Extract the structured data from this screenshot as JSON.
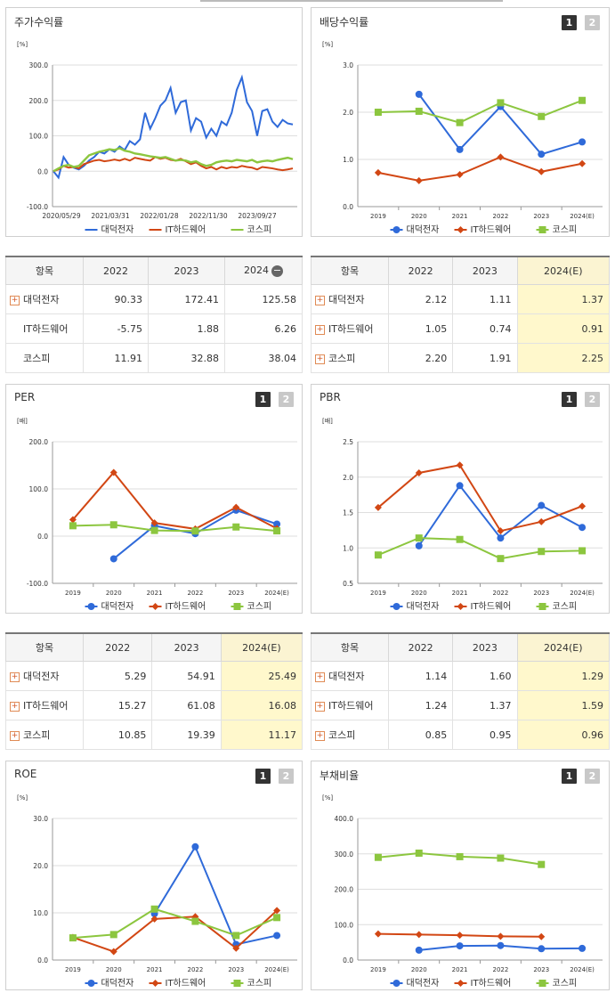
{
  "colors": {
    "series1": "#2f6ad9",
    "series2": "#d24714",
    "series3": "#8cc63f"
  },
  "panels": {
    "stock": {
      "title": "주가수익률"
    },
    "dividend": {
      "title": "배당수익률",
      "pages": [
        "1",
        "2"
      ]
    },
    "per": {
      "title": "PER",
      "pages": [
        "1",
        "2"
      ]
    },
    "pbr": {
      "title": "PBR",
      "pages": [
        "1",
        "2"
      ]
    },
    "roe": {
      "title": "ROE",
      "pages": [
        "1",
        "2"
      ]
    },
    "debt": {
      "title": "부채비율",
      "pages": [
        "1",
        "2"
      ]
    }
  },
  "chart_data": [
    {
      "id": "stock",
      "type": "line",
      "unit": "[%]",
      "y_ticks": [
        "300.0",
        "200.0",
        "100.0",
        "0.0",
        "-100.0"
      ],
      "ylim": [
        -100,
        300
      ],
      "x_ticks": [
        "2020/05/29",
        "2021/03/31",
        "2022/01/28",
        "2022/11/30",
        "2023/09/27"
      ],
      "series": [
        {
          "name": "대덕전자",
          "values": [
            0,
            -18,
            40,
            18,
            10,
            5,
            15,
            30,
            40,
            55,
            50,
            62,
            55,
            70,
            60,
            85,
            75,
            90,
            165,
            120,
            150,
            185,
            200,
            235,
            165,
            195,
            200,
            115,
            150,
            140,
            95,
            120,
            100,
            140,
            130,
            165,
            230,
            265,
            195,
            170,
            100,
            170,
            175,
            140,
            125,
            145,
            135,
            132
          ]
        },
        {
          "name": "IT하드웨어",
          "values": [
            0,
            5,
            15,
            10,
            12,
            8,
            20,
            25,
            30,
            32,
            28,
            30,
            33,
            30,
            35,
            30,
            38,
            35,
            32,
            30,
            40,
            35,
            38,
            32,
            30,
            35,
            28,
            20,
            25,
            15,
            8,
            12,
            5,
            12,
            8,
            12,
            10,
            15,
            12,
            10,
            5,
            12,
            10,
            8,
            5,
            3,
            5,
            8
          ]
        },
        {
          "name": "코스피",
          "values": [
            0,
            8,
            15,
            18,
            12,
            15,
            30,
            45,
            50,
            55,
            58,
            62,
            60,
            65,
            58,
            55,
            50,
            48,
            45,
            42,
            40,
            38,
            40,
            35,
            30,
            32,
            30,
            25,
            28,
            20,
            15,
            18,
            25,
            28,
            30,
            28,
            32,
            30,
            28,
            32,
            25,
            28,
            30,
            28,
            32,
            35,
            38,
            34
          ]
        }
      ]
    },
    {
      "id": "dividend",
      "type": "line",
      "unit": "[%]",
      "y_ticks": [
        "3.0",
        "2.0",
        "1.0",
        "0.0"
      ],
      "ylim": [
        0,
        3
      ],
      "categories": [
        "2019",
        "2020",
        "2021",
        "2022",
        "2023",
        "2024(E)"
      ],
      "series": [
        {
          "name": "대덕전자",
          "values": [
            null,
            2.38,
            1.21,
            2.12,
            1.11,
            1.37
          ]
        },
        {
          "name": "IT하드웨어",
          "values": [
            0.72,
            0.55,
            0.68,
            1.05,
            0.74,
            0.91
          ]
        },
        {
          "name": "코스피",
          "values": [
            2.0,
            2.02,
            1.78,
            2.2,
            1.91,
            2.25
          ]
        }
      ]
    },
    {
      "id": "per",
      "type": "line",
      "unit": "[배]",
      "y_ticks": [
        "200.0",
        "100.0",
        "0.0",
        "-100.0"
      ],
      "ylim": [
        -100,
        200
      ],
      "categories": [
        "2019",
        "2020",
        "2021",
        "2022",
        "2023",
        "2024(E)"
      ],
      "series": [
        {
          "name": "대덕전자",
          "values": [
            null,
            -48,
            22,
            5.29,
            54.91,
            25.49
          ]
        },
        {
          "name": "IT하드웨어",
          "values": [
            35,
            135,
            28,
            15.27,
            61.08,
            16.08
          ]
        },
        {
          "name": "코스피",
          "values": [
            22,
            24,
            12,
            10.85,
            19.39,
            11.17
          ]
        }
      ]
    },
    {
      "id": "pbr",
      "type": "line",
      "unit": "[배]",
      "y_ticks": [
        "2.5",
        "2.0",
        "1.5",
        "1.0",
        "0.5"
      ],
      "ylim": [
        0.5,
        2.5
      ],
      "categories": [
        "2019",
        "2020",
        "2021",
        "2022",
        "2023",
        "2024(E)"
      ],
      "series": [
        {
          "name": "대덕전자",
          "values": [
            null,
            1.03,
            1.88,
            1.14,
            1.6,
            1.29
          ]
        },
        {
          "name": "IT하드웨어",
          "values": [
            1.57,
            2.06,
            2.17,
            1.24,
            1.37,
            1.59
          ]
        },
        {
          "name": "코스피",
          "values": [
            0.9,
            1.14,
            1.12,
            0.85,
            0.95,
            0.96
          ]
        }
      ]
    },
    {
      "id": "roe",
      "type": "line",
      "unit": "[%]",
      "y_ticks": [
        "30.0",
        "20.0",
        "10.0",
        "0.0"
      ],
      "ylim": [
        0,
        30
      ],
      "categories": [
        "2019",
        "2020",
        "2021",
        "2022",
        "2023",
        "2024(E)"
      ],
      "series": [
        {
          "name": "대덕전자",
          "values": [
            null,
            null,
            9.8,
            24.0,
            3.3,
            5.2
          ]
        },
        {
          "name": "IT하드웨어",
          "values": [
            4.8,
            1.8,
            8.7,
            9.2,
            2.5,
            10.5
          ]
        },
        {
          "name": "코스피",
          "values": [
            4.7,
            5.4,
            10.8,
            8.2,
            5.2,
            9.0
          ]
        }
      ]
    },
    {
      "id": "debt",
      "type": "line",
      "unit": "[%]",
      "y_ticks": [
        "400.0",
        "300.0",
        "200.0",
        "100.0",
        "0.0"
      ],
      "ylim": [
        0,
        400
      ],
      "categories": [
        "2019",
        "2020",
        "2021",
        "2022",
        "2023",
        "2024(E)"
      ],
      "series": [
        {
          "name": "대덕전자",
          "values": [
            null,
            28,
            40,
            41,
            32,
            33
          ]
        },
        {
          "name": "IT하드웨어",
          "values": [
            74,
            72,
            70,
            67,
            66,
            null
          ]
        },
        {
          "name": "코스피",
          "values": [
            290,
            302,
            292,
            288,
            270,
            null
          ]
        }
      ]
    }
  ],
  "tables": {
    "stock": {
      "head": "항목",
      "cols": [
        "2022",
        "2023",
        "2024"
      ],
      "minus_icon": "minus-icon",
      "rows": [
        {
          "name": "대덕전자",
          "plus": true,
          "values": [
            "90.33",
            "172.41",
            "125.58"
          ]
        },
        {
          "name": "IT하드웨어",
          "plus": false,
          "values": [
            "-5.75",
            "1.88",
            "6.26"
          ]
        },
        {
          "name": "코스피",
          "plus": false,
          "values": [
            "11.91",
            "32.88",
            "38.04"
          ]
        }
      ]
    },
    "dividend": {
      "head": "항목",
      "cols": [
        "2022",
        "2023",
        "2024(E)"
      ],
      "rows": [
        {
          "name": "대덕전자",
          "plus": true,
          "values": [
            "2.12",
            "1.11",
            "1.37"
          ]
        },
        {
          "name": "IT하드웨어",
          "plus": true,
          "values": [
            "1.05",
            "0.74",
            "0.91"
          ]
        },
        {
          "name": "코스피",
          "plus": true,
          "values": [
            "2.20",
            "1.91",
            "2.25"
          ]
        }
      ]
    },
    "per": {
      "head": "항목",
      "cols": [
        "2022",
        "2023",
        "2024(E)"
      ],
      "rows": [
        {
          "name": "대덕전자",
          "plus": true,
          "values": [
            "5.29",
            "54.91",
            "25.49"
          ]
        },
        {
          "name": "IT하드웨어",
          "plus": true,
          "values": [
            "15.27",
            "61.08",
            "16.08"
          ]
        },
        {
          "name": "코스피",
          "plus": true,
          "values": [
            "10.85",
            "19.39",
            "11.17"
          ]
        }
      ]
    },
    "pbr": {
      "head": "항목",
      "cols": [
        "2022",
        "2023",
        "2024(E)"
      ],
      "rows": [
        {
          "name": "대덕전자",
          "plus": true,
          "values": [
            "1.14",
            "1.60",
            "1.29"
          ]
        },
        {
          "name": "IT하드웨어",
          "plus": true,
          "values": [
            "1.24",
            "1.37",
            "1.59"
          ]
        },
        {
          "name": "코스피",
          "plus": true,
          "values": [
            "0.85",
            "0.95",
            "0.96"
          ]
        }
      ]
    }
  }
}
